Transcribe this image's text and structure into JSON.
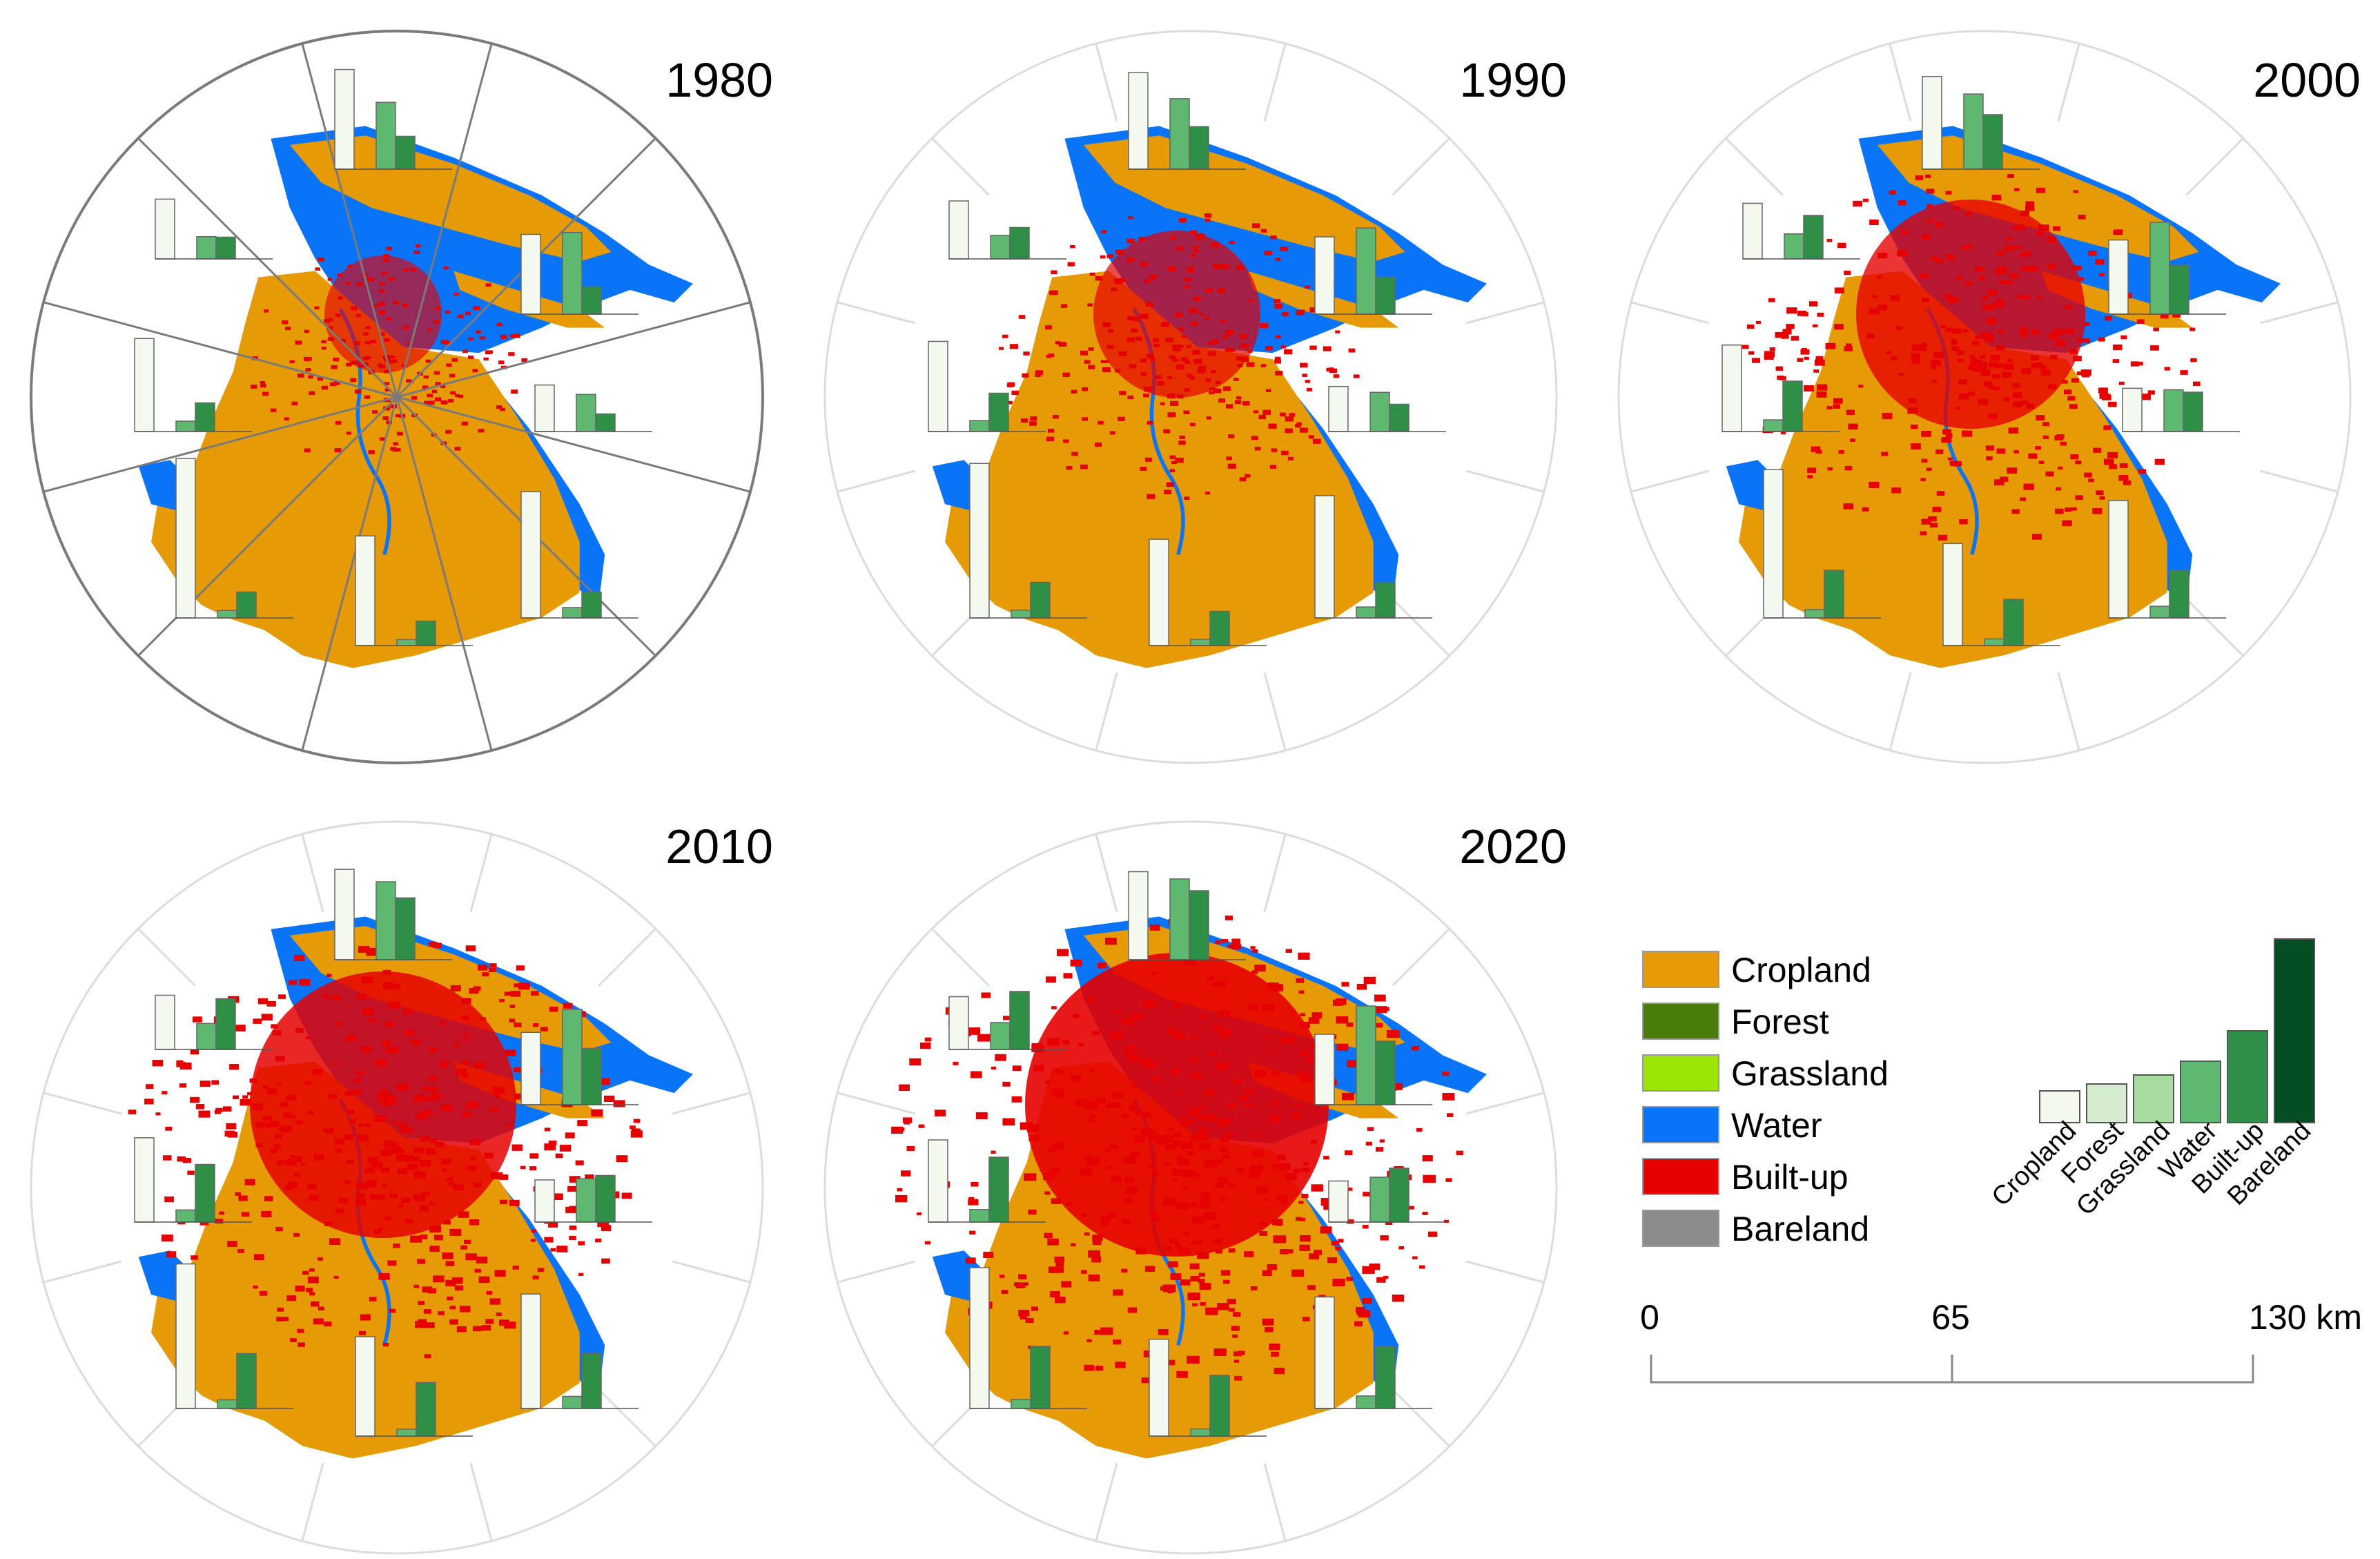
{
  "panels": [
    {
      "year": "1980",
      "sector_lines": "dark"
    },
    {
      "year": "1990",
      "sector_lines": "light"
    },
    {
      "year": "2000",
      "sector_lines": "light"
    },
    {
      "year": "2010",
      "sector_lines": "light"
    },
    {
      "year": "2020",
      "sector_lines": "light"
    }
  ],
  "legend": {
    "items": [
      {
        "label": "Cropland",
        "color": "#e69b06"
      },
      {
        "label": "Forest",
        "color": "#4a7c0a"
      },
      {
        "label": "Grassland",
        "color": "#9be607"
      },
      {
        "label": "Water",
        "color": "#0a74f8"
      },
      {
        "label": "Built-up",
        "color": "#e60000"
      },
      {
        "label": "Bareland",
        "color": "#8c8c8c"
      }
    ]
  },
  "bar_key": {
    "categories": [
      "Cropland",
      "Forest",
      "Grassland",
      "Water",
      "Built-up",
      "Bareland"
    ],
    "colors": [
      "#f4f9ef",
      "#d6ecd0",
      "#a7dba0",
      "#5fb870",
      "#2f8f47",
      "#054d22"
    ]
  },
  "scale_bar": {
    "ticks": [
      "0",
      "65",
      "130 km"
    ]
  },
  "colors": {
    "land": "#e69b06",
    "water": "#0a74f8",
    "builtup": "#e60000",
    "dark_line": "#7a7a7a",
    "light_line": "#dcdcdc"
  }
}
